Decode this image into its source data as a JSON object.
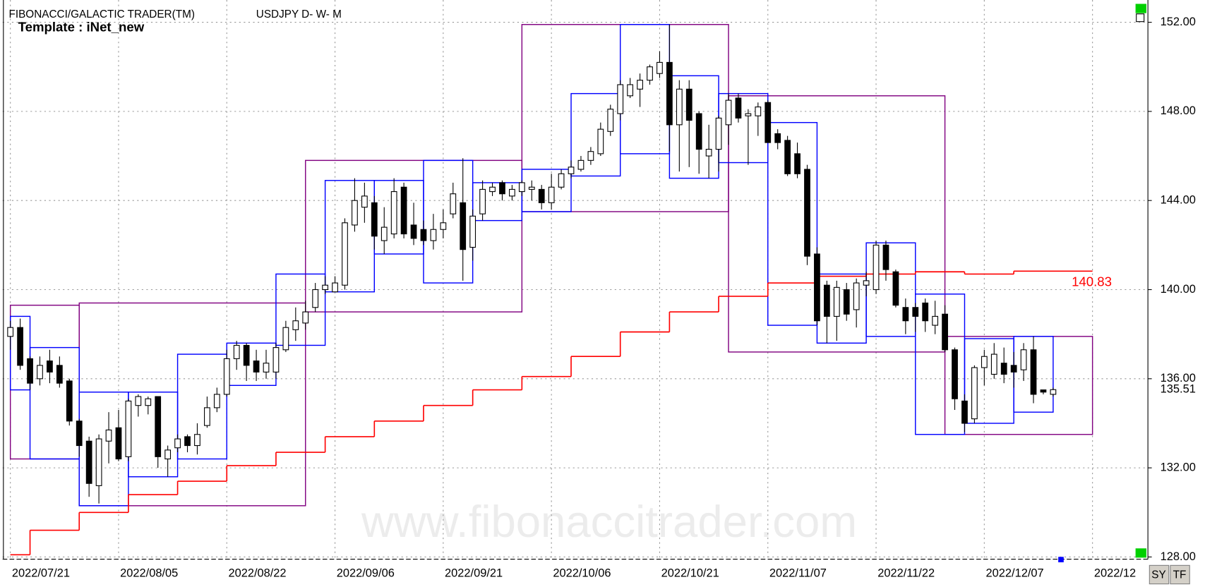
{
  "chart_data": {
    "type": "candlestick",
    "title": "FIBONACCI/GALACTIC TRADER(TM)",
    "subtitle": "USDJPY D- W- M",
    "template": "Template : iNet_new",
    "watermark": "www.fibonaccitrader.com",
    "buttons": [
      "SY",
      "TF"
    ],
    "categories": [
      "2022/07/21",
      null,
      null,
      null,
      null,
      null,
      null,
      null,
      null,
      null,
      null,
      "2022/08/05",
      null,
      null,
      null,
      null,
      null,
      null,
      null,
      null,
      null,
      null,
      "2022/08/22",
      null,
      null,
      null,
      null,
      null,
      null,
      null,
      null,
      null,
      null,
      "2022/09/06",
      null,
      null,
      null,
      null,
      null,
      null,
      null,
      null,
      null,
      null,
      "2022/09/21",
      null,
      null,
      null,
      null,
      null,
      null,
      null,
      null,
      null,
      null,
      "2022/10/06",
      null,
      null,
      null,
      null,
      null,
      null,
      null,
      null,
      null,
      null,
      "2022/10/21",
      null,
      null,
      null,
      null,
      null,
      null,
      null,
      null,
      null,
      null,
      "2022/11/07",
      null,
      null,
      null,
      null,
      null,
      null,
      null,
      null,
      null,
      null,
      "2022/11/22",
      null,
      null,
      null,
      null,
      null,
      null,
      null,
      null,
      null,
      null,
      "2022/12/07",
      null,
      null,
      null,
      null,
      null,
      null,
      null,
      null,
      null,
      null,
      "2022/12"
    ],
    "open": [
      137.9,
      138.3,
      136.9,
      136.0,
      136.8,
      136.6,
      135.9,
      134.1,
      133.2,
      131.2,
      133.2,
      133.8,
      132.5,
      134.8,
      134.8,
      135.2,
      132.4,
      132.9,
      133.4,
      133.0,
      133.9,
      134.7,
      135.3,
      136.9,
      137.5,
      136.8,
      136.3,
      136.3,
      137.3,
      138.2,
      138.5,
      139.2,
      140.0,
      139.9,
      140.2,
      142.9,
      143.7,
      143.9,
      142.2,
      142.5,
      144.6,
      142.9,
      142.7,
      142.2,
      142.7,
      143.4,
      143.9,
      141.9,
      143.4,
      144.4,
      144.8,
      144.2,
      144.4,
      144.5,
      144.5,
      143.9,
      144.6,
      145.2,
      145.4,
      145.8,
      146.1,
      147.1,
      147.9,
      148.7,
      149.0,
      149.4,
      149.7,
      150.2,
      147.4,
      149.0,
      147.9,
      146.0,
      146.3,
      147.4,
      148.6,
      147.8,
      147.8,
      148.4,
      147.0,
      146.7,
      146.1,
      145.4,
      141.6,
      140.2,
      138.8,
      140.0,
      139.1,
      140.2,
      140.0,
      142.0,
      140.8,
      139.2,
      139.2,
      139.4,
      138.4,
      138.9,
      137.3,
      135.0,
      134.2,
      136.5,
      136.2,
      136.7,
      136.6,
      136.4,
      137.3,
      135.5,
      135.3,
      null,
      null,
      null,
      null
    ],
    "high": [
      138.6,
      138.7,
      137.0,
      137.0,
      137.3,
      137.0,
      136.0,
      134.2,
      133.4,
      133.5,
      134.5,
      134.6,
      135.1,
      135.3,
      135.2,
      135.2,
      133.0,
      133.5,
      133.5,
      134.0,
      135.2,
      135.6,
      137.3,
      137.7,
      137.6,
      137.3,
      137.3,
      137.6,
      138.6,
      139.2,
      139.5,
      140.3,
      140.6,
      140.6,
      143.2,
      145.0,
      144.8,
      144.2,
      143.7,
      145.0,
      144.8,
      143.9,
      143.1,
      143.4,
      143.6,
      144.8,
      145.9,
      143.6,
      144.9,
      144.8,
      144.9,
      144.7,
      144.9,
      144.9,
      144.7,
      145.2,
      145.4,
      145.8,
      146.0,
      146.4,
      147.5,
      148.3,
      149.4,
      149.5,
      149.7,
      150.1,
      150.7,
      151.9,
      149.4,
      149.4,
      148.0,
      147.4,
      147.8,
      148.8,
      148.8,
      148.1,
      148.4,
      148.5,
      147.2,
      146.9,
      146.6,
      145.6,
      141.9,
      140.4,
      140.4,
      140.3,
      140.5,
      140.8,
      142.2,
      142.2,
      140.9,
      139.6,
      139.4,
      139.6,
      139.5,
      139.3,
      137.4,
      135.3,
      136.6,
      137.3,
      137.6,
      137.4,
      137.2,
      137.6,
      137.9,
      135.5,
      135.6,
      null,
      null,
      null,
      null
    ],
    "low": [
      137.3,
      136.4,
      135.5,
      135.7,
      135.8,
      135.6,
      133.9,
      132.5,
      130.7,
      130.4,
      132.2,
      132.3,
      132.3,
      134.3,
      134.4,
      132.0,
      131.6,
      132.7,
      132.7,
      132.6,
      133.8,
      134.5,
      135.2,
      136.4,
      135.9,
      135.9,
      136.0,
      136.0,
      137.2,
      137.7,
      138.2,
      139.0,
      139.8,
      139.9,
      140.0,
      142.6,
      143.0,
      141.8,
      141.6,
      142.3,
      142.3,
      142.0,
      142.0,
      141.8,
      142.3,
      143.2,
      140.4,
      141.3,
      143.1,
      144.2,
      144.0,
      144.0,
      144.2,
      144.0,
      143.6,
      143.6,
      144.5,
      145.0,
      145.3,
      145.6,
      146.0,
      146.9,
      147.6,
      148.6,
      148.2,
      149.2,
      149.5,
      146.2,
      145.3,
      145.5,
      145.2,
      145.0,
      145.3,
      146.5,
      147.5,
      145.6,
      146.9,
      146.6,
      146.3,
      145.1,
      145.0,
      141.1,
      138.4,
      137.6,
      137.7,
      138.6,
      138.3,
      139.7,
      139.8,
      140.4,
      139.2,
      138.0,
      138.1,
      138.1,
      138.0,
      137.2,
      134.6,
      133.6,
      134.0,
      135.7,
      136.0,
      135.8,
      135.6,
      135.9,
      134.9,
      135.3,
      135.2,
      null,
      null,
      null,
      null
    ],
    "close": [
      138.3,
      136.6,
      135.8,
      136.6,
      136.3,
      135.8,
      134.1,
      133.0,
      131.3,
      133.3,
      133.7,
      132.4,
      135.0,
      135.2,
      135.1,
      132.5,
      132.8,
      133.3,
      133.0,
      133.5,
      134.7,
      135.3,
      136.9,
      137.5,
      136.6,
      136.3,
      136.7,
      137.4,
      138.3,
      138.6,
      139.0,
      140.0,
      140.2,
      140.3,
      143.0,
      144.0,
      144.2,
      142.4,
      142.8,
      144.4,
      142.5,
      142.3,
      142.2,
      142.7,
      143.0,
      144.3,
      141.8,
      143.3,
      144.5,
      144.6,
      144.3,
      144.5,
      144.8,
      144.6,
      143.9,
      144.6,
      145.2,
      145.5,
      145.8,
      146.2,
      147.2,
      148.1,
      149.2,
      149.2,
      149.4,
      150.0,
      150.2,
      147.4,
      149.0,
      147.6,
      146.3,
      146.3,
      147.7,
      148.5,
      147.7,
      147.9,
      148.2,
      146.6,
      146.6,
      145.2,
      145.2,
      141.5,
      138.6,
      138.8,
      140.1,
      138.9,
      140.3,
      140.4,
      142.0,
      140.9,
      139.3,
      138.6,
      138.8,
      138.6,
      138.8,
      137.3,
      135.1,
      134.0,
      136.5,
      137.0,
      137.1,
      136.2,
      136.3,
      137.3,
      135.3,
      135.4,
      135.51,
      null,
      null,
      null,
      null
    ],
    "close_label": "135.51",
    "weekly_color": "#0000ff",
    "monthly_color": "#800080",
    "level_color": "#ff0000",
    "weekly_boxes": [
      {
        "from": 0,
        "to": 2,
        "high": 138.8,
        "low": 135.5,
        "level": 128.1
      },
      {
        "from": 2,
        "to": 7,
        "high": 137.4,
        "low": 132.4,
        "level": 129.2
      },
      {
        "from": 7,
        "to": 12,
        "high": 135.4,
        "low": 130.3,
        "level": 130.0
      },
      {
        "from": 12,
        "to": 17,
        "high": 135.4,
        "low": 131.6,
        "level": 130.8
      },
      {
        "from": 17,
        "to": 22,
        "high": 137.1,
        "low": 132.4,
        "level": 131.4
      },
      {
        "from": 22,
        "to": 27,
        "high": 137.6,
        "low": 135.7,
        "level": 132.1
      },
      {
        "from": 27,
        "to": 32,
        "high": 140.7,
        "low": 137.5,
        "level": 132.7
      },
      {
        "from": 32,
        "to": 37,
        "high": 144.9,
        "low": 139.9,
        "level": 133.4
      },
      {
        "from": 37,
        "to": 42,
        "high": 144.9,
        "low": 141.6,
        "level": 134.1
      },
      {
        "from": 42,
        "to": 47,
        "high": 145.8,
        "low": 140.3,
        "level": 134.8
      },
      {
        "from": 47,
        "to": 52,
        "high": 144.8,
        "low": 143.1,
        "level": 135.5
      },
      {
        "from": 52,
        "to": 57,
        "high": 145.4,
        "low": 143.5,
        "level": 136.1
      },
      {
        "from": 57,
        "to": 62,
        "high": 148.8,
        "low": 145.1,
        "level": 137.0
      },
      {
        "from": 62,
        "to": 67,
        "high": 151.9,
        "low": 146.1,
        "level": 138.1
      },
      {
        "from": 67,
        "to": 72,
        "high": 149.6,
        "low": 145.0,
        "level": 139.0
      },
      {
        "from": 72,
        "to": 77,
        "high": 148.8,
        "low": 145.7,
        "level": 139.7
      },
      {
        "from": 77,
        "to": 82,
        "high": 147.5,
        "low": 138.4,
        "level": 140.3
      },
      {
        "from": 82,
        "to": 87,
        "high": 140.7,
        "low": 137.6,
        "level": 140.6
      },
      {
        "from": 87,
        "to": 92,
        "high": 142.1,
        "low": 137.9,
        "level": 140.7
      },
      {
        "from": 92,
        "to": 97,
        "high": 139.8,
        "low": 133.5,
        "level": 140.8
      },
      {
        "from": 97,
        "to": 102,
        "high": 137.8,
        "low": 134.0,
        "level": 140.7
      },
      {
        "from": 102,
        "to": 106,
        "high": 137.9,
        "low": 134.5,
        "level": 140.83
      }
    ],
    "level_label": "140.83",
    "monthly_boxes": [
      {
        "from": 0,
        "to": 7,
        "high": 139.3,
        "low": 132.4
      },
      {
        "from": 7,
        "to": 30,
        "high": 139.4,
        "low": 130.3
      },
      {
        "from": 30,
        "to": 52,
        "high": 145.8,
        "low": 139.0
      },
      {
        "from": 52,
        "to": 73,
        "high": 151.9,
        "low": 143.5
      },
      {
        "from": 73,
        "to": 95,
        "high": 148.7,
        "low": 137.2
      },
      {
        "from": 95,
        "to": 110,
        "high": 137.9,
        "low": 133.5
      }
    ],
    "ylim": [
      127.9,
      153
    ],
    "yticks": [
      {
        "value": 128,
        "label": "128.00"
      },
      {
        "value": 132,
        "label": "132.00"
      },
      {
        "value": 136,
        "label": "136.00"
      },
      {
        "value": 140,
        "label": "140.00"
      },
      {
        "value": 144,
        "label": "144.00"
      },
      {
        "value": 148,
        "label": "148.00"
      },
      {
        "value": 152,
        "label": "152.00"
      }
    ],
    "grid": true
  }
}
